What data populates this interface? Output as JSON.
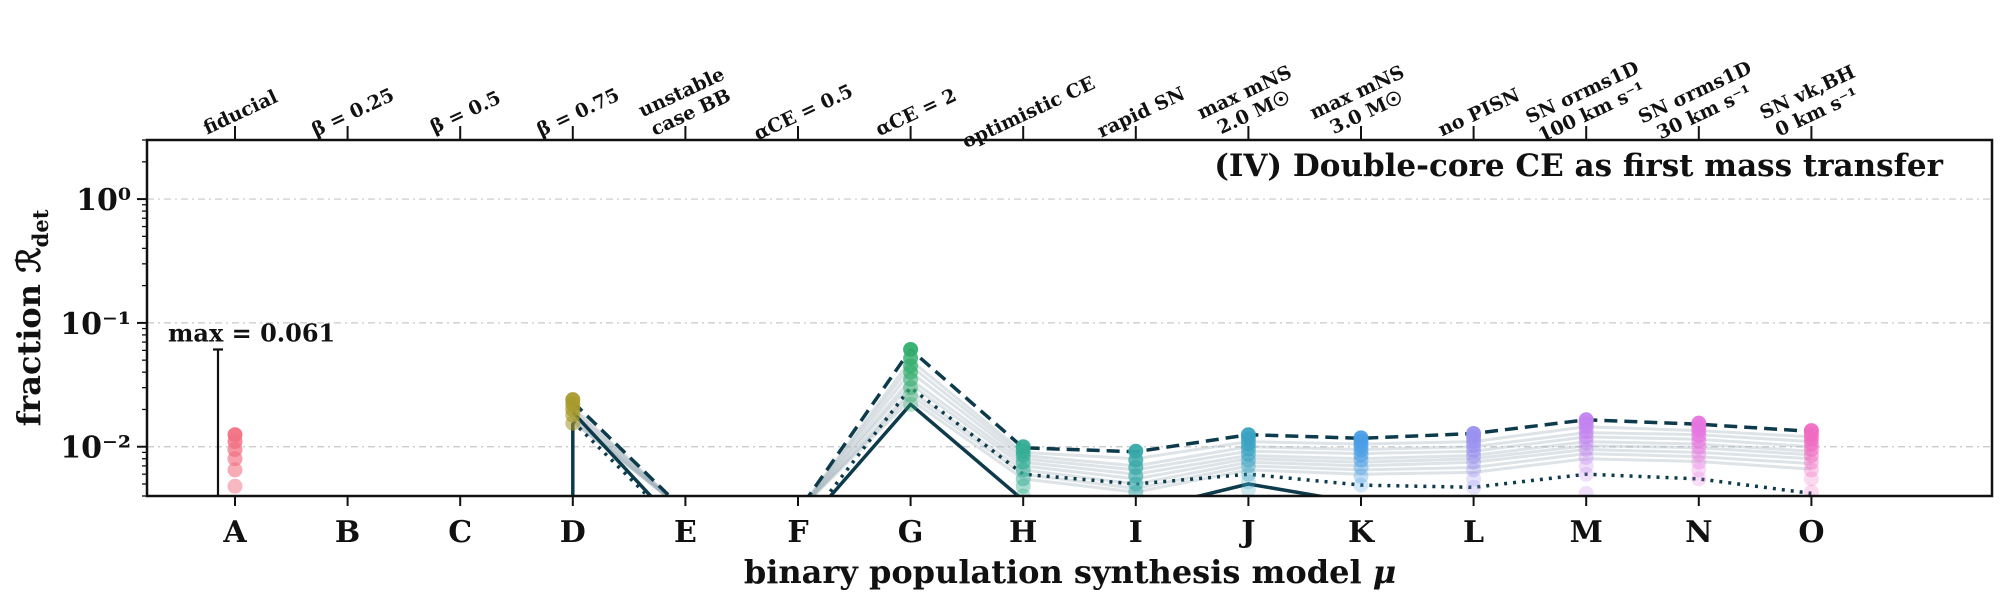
{
  "chart_data": {
    "type": "line",
    "title": "(IV) Double-core CE as first mass transfer",
    "xlabel": "binary population synthesis model μ",
    "ylabel": "fraction ℛdet",
    "yscale": "log",
    "ylim": [
      0.004,
      3
    ],
    "grid": "horizontal dash-dot",
    "categories": [
      "A",
      "B",
      "C",
      "D",
      "E",
      "F",
      "G",
      "H",
      "I",
      "J",
      "K",
      "L",
      "M",
      "N",
      "O"
    ],
    "top_labels": [
      [
        "fiducial"
      ],
      [
        "β = 0.25"
      ],
      [
        "β = 0.5"
      ],
      [
        "β = 0.75"
      ],
      [
        "unstable",
        "case BB"
      ],
      [
        "αCE = 0.5"
      ],
      [
        "αCE = 2"
      ],
      [
        "optimistic CE"
      ],
      [
        "rapid SN"
      ],
      [
        "max mNS",
        "2.0 M☉"
      ],
      [
        "max mNS",
        "3.0 M☉"
      ],
      [
        "no PISN"
      ],
      [
        "SN σrms1D",
        "100 km s⁻¹"
      ],
      [
        "SN σrms1D",
        "30 km s⁻¹"
      ],
      [
        "SN vk,BH",
        "0 km s⁻¹"
      ]
    ],
    "ytick_labels": [
      "10⁰",
      "10⁻¹",
      "10⁻²"
    ],
    "ytick_values": [
      1,
      0.1,
      0.01
    ],
    "max_annotation": {
      "label": "max = 0.061",
      "category": "A",
      "value": 0.061
    },
    "category_colors": [
      "#f27183",
      "#e48a6b",
      "#cf9e5a",
      "#a99a2e",
      "#8aa737",
      "#5bae4a",
      "#33ae6e",
      "#35ae94",
      "#38aaa9",
      "#3aa3c2",
      "#4a9ee6",
      "#9b92ef",
      "#c284f0",
      "#e775e0",
      "#f06bc2"
    ],
    "points": [
      [
        0.0125,
        0.011,
        0.0095,
        0.008,
        0.0065,
        0.0048
      ],
      [],
      [],
      [
        0.024,
        0.022,
        0.02,
        0.018,
        0.0155
      ],
      [],
      [],
      [
        0.061,
        0.052,
        0.045,
        0.04,
        0.035,
        0.03,
        0.026,
        0.022
      ],
      [
        0.01,
        0.0092,
        0.0085,
        0.0075,
        0.0065,
        0.0055,
        0.0048,
        0.004
      ],
      [
        0.0092,
        0.0078,
        0.0068,
        0.0058,
        0.005,
        0.0043
      ],
      [
        0.0125,
        0.0115,
        0.0105,
        0.0096,
        0.0087,
        0.0078,
        0.007,
        0.006,
        0.0052,
        0.0045
      ],
      [
        0.0118,
        0.011,
        0.0102,
        0.0094,
        0.0086,
        0.0078,
        0.0068,
        0.0058,
        0.0049
      ],
      [
        0.0128,
        0.012,
        0.0111,
        0.0102,
        0.0093,
        0.0084,
        0.0075,
        0.0065,
        0.0055,
        0.0047
      ],
      [
        0.0165,
        0.0155,
        0.0145,
        0.0132,
        0.012,
        0.0108,
        0.0095,
        0.0082,
        0.007,
        0.006,
        0.0042
      ],
      [
        0.0155,
        0.0145,
        0.0135,
        0.0123,
        0.0111,
        0.0099,
        0.0087,
        0.0075,
        0.0065,
        0.0055
      ],
      [
        0.0135,
        0.0125,
        0.0115,
        0.0105,
        0.0095,
        0.0085,
        0.0075,
        0.0065,
        0.0055,
        0.0043
      ]
    ],
    "series": [
      {
        "style": "dashed",
        "values": [
          null,
          null,
          null,
          0.023,
          0.003,
          0.003,
          0.061,
          0.0098,
          0.0091,
          0.0125,
          0.0117,
          0.0128,
          0.0165,
          0.0152,
          0.0133
        ]
      },
      {
        "style": "dotted",
        "values": [
          null,
          null,
          null,
          0.016,
          0.002,
          0.002,
          0.03,
          0.006,
          0.005,
          0.006,
          0.0049,
          0.0047,
          0.006,
          0.0055,
          0.0042
        ]
      },
      {
        "style": "solid",
        "values": [
          null,
          null,
          null,
          0.019,
          0.002,
          0.002,
          0.022,
          0.0037,
          0.003,
          0.005,
          0.0035,
          0.003,
          0.003,
          0.003,
          0.003
        ]
      },
      {
        "style": "faint",
        "values": [
          null,
          null,
          null,
          0.021,
          0.003,
          0.003,
          0.05,
          0.009,
          0.008,
          0.011,
          0.0105,
          0.011,
          0.0145,
          0.0135,
          0.012
        ]
      },
      {
        "style": "faint",
        "values": [
          null,
          null,
          null,
          0.02,
          0.003,
          0.003,
          0.045,
          0.0085,
          0.007,
          0.01,
          0.0095,
          0.01,
          0.013,
          0.0125,
          0.011
        ]
      },
      {
        "style": "faint",
        "values": [
          null,
          null,
          null,
          0.019,
          0.003,
          0.003,
          0.04,
          0.008,
          0.0065,
          0.0092,
          0.0088,
          0.0092,
          0.012,
          0.0115,
          0.01
        ]
      },
      {
        "style": "faint",
        "values": [
          null,
          null,
          null,
          0.018,
          0.003,
          0.003,
          0.035,
          0.0075,
          0.006,
          0.0085,
          0.008,
          0.0085,
          0.011,
          0.0105,
          0.0092
        ]
      },
      {
        "style": "faint",
        "values": [
          null,
          null,
          null,
          0.017,
          0.003,
          0.003,
          0.032,
          0.007,
          0.0055,
          0.008,
          0.0075,
          0.008,
          0.0102,
          0.0098,
          0.0086
        ]
      },
      {
        "style": "faint",
        "values": [
          null,
          null,
          null,
          0.017,
          0.003,
          0.003,
          0.028,
          0.0065,
          0.005,
          0.0075,
          0.007,
          0.0075,
          0.0095,
          0.009,
          0.008
        ]
      },
      {
        "style": "faint",
        "values": [
          null,
          null,
          null,
          0.016,
          0.003,
          0.003,
          0.026,
          0.006,
          0.0046,
          0.007,
          0.0065,
          0.0068,
          0.0088,
          0.0083,
          0.0073
        ]
      },
      {
        "style": "faint",
        "values": [
          null,
          null,
          null,
          0.016,
          0.003,
          0.003,
          0.024,
          0.0055,
          0.0043,
          0.0065,
          0.006,
          0.0062,
          0.008,
          0.0076,
          0.0066
        ]
      }
    ]
  }
}
